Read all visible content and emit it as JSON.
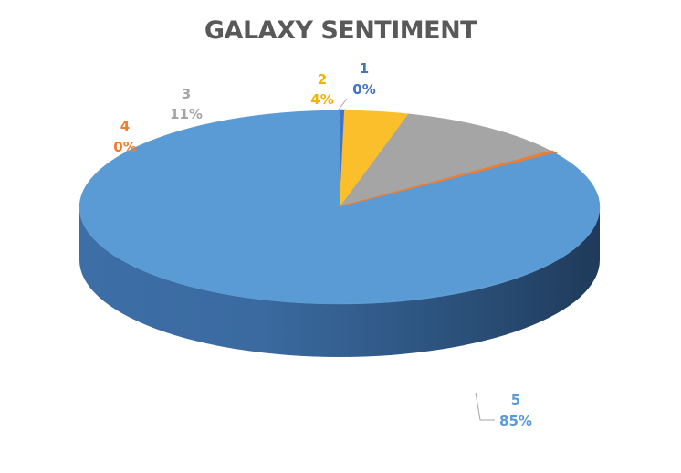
{
  "chart_data": {
    "type": "pie",
    "title": "GALAXY SENTIMENT",
    "three_d": true,
    "legend": "none",
    "slices": [
      {
        "name": "1",
        "value": 0.3,
        "label": "0%",
        "color": "#4472c4"
      },
      {
        "name": "2",
        "value": 4,
        "label": "4%",
        "color": "#fbbf2c"
      },
      {
        "name": "3",
        "value": 11,
        "label": "11%",
        "color": "#a5a5a5"
      },
      {
        "name": "4",
        "value": 0.3,
        "label": "0%",
        "color": "#ed7d31"
      },
      {
        "name": "5",
        "value": 85,
        "label": "85%",
        "color": "#5b9bd5"
      }
    ]
  }
}
